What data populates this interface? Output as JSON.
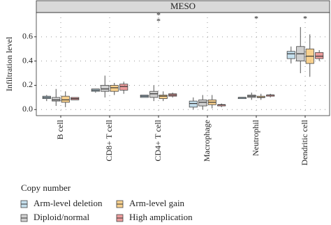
{
  "chart_data": {
    "type": "box",
    "title": "MESO",
    "y_label": "Infiltration level",
    "categories": [
      "B cell",
      "CD8+ T cell",
      "CD4+ T cell",
      "Macrophage",
      "Neutrophil",
      "Dendritic cell"
    ],
    "ylim": [
      -0.05,
      0.8
    ],
    "yticks": [
      {
        "value": 0,
        "label": "0.0"
      },
      0.2,
      0.4,
      0.6
    ],
    "grid": true,
    "legend_title": "Copy number",
    "series": [
      {
        "name": "Arm-level deletion",
        "color": "#9ecae1",
        "values": [
          {
            "min": 0.07,
            "q1": 0.09,
            "median": 0.1,
            "q3": 0.11,
            "max": 0.12
          },
          {
            "min": 0.14,
            "q1": 0.15,
            "median": 0.16,
            "q3": 0.17,
            "max": 0.17
          },
          {
            "min": 0.1,
            "q1": 0.1,
            "median": 0.11,
            "q3": 0.12,
            "max": 0.12
          },
          {
            "min": 0.0,
            "q1": 0.02,
            "median": 0.05,
            "q3": 0.07,
            "max": 0.1
          },
          {
            "min": 0.09,
            "q1": 0.09,
            "median": 0.1,
            "q3": 0.1,
            "max": 0.1
          },
          {
            "min": 0.38,
            "q1": 0.42,
            "median": 0.46,
            "q3": 0.48,
            "max": 0.52
          }
        ]
      },
      {
        "name": "Diploid/normal",
        "color": "#b0b0b0",
        "values": [
          {
            "min": 0.03,
            "q1": 0.07,
            "median": 0.08,
            "q3": 0.1,
            "max": 0.17
          },
          {
            "min": 0.1,
            "q1": 0.15,
            "median": 0.17,
            "q3": 0.2,
            "max": 0.28
          },
          {
            "min": 0.07,
            "q1": 0.1,
            "median": 0.13,
            "q3": 0.15,
            "max": 0.2
          },
          {
            "min": 0.0,
            "q1": 0.03,
            "median": 0.06,
            "q3": 0.08,
            "max": 0.12
          },
          {
            "min": 0.08,
            "q1": 0.1,
            "median": 0.11,
            "q3": 0.12,
            "max": 0.14
          },
          {
            "min": 0.3,
            "q1": 0.4,
            "median": 0.46,
            "q3": 0.52,
            "max": 0.68
          }
        ]
      },
      {
        "name": "Arm-level gain",
        "color": "#f5b342",
        "values": [
          {
            "min": 0.02,
            "q1": 0.06,
            "median": 0.08,
            "q3": 0.11,
            "max": 0.15
          },
          {
            "min": 0.12,
            "q1": 0.15,
            "median": 0.18,
            "q3": 0.2,
            "max": 0.22
          },
          {
            "min": 0.07,
            "q1": 0.09,
            "median": 0.11,
            "q3": 0.12,
            "max": 0.15
          },
          {
            "min": 0.01,
            "q1": 0.04,
            "median": 0.06,
            "q3": 0.08,
            "max": 0.12
          },
          {
            "min": 0.08,
            "q1": 0.1,
            "median": 0.1,
            "q3": 0.11,
            "max": 0.13
          },
          {
            "min": 0.27,
            "q1": 0.38,
            "median": 0.44,
            "q3": 0.5,
            "max": 0.62
          }
        ]
      },
      {
        "name": "High amplication",
        "color": "#e05a5a",
        "values": [
          {
            "min": 0.08,
            "q1": 0.08,
            "median": 0.09,
            "q3": 0.1,
            "max": 0.1
          },
          {
            "min": 0.13,
            "q1": 0.16,
            "median": 0.19,
            "q3": 0.21,
            "max": 0.23
          },
          {
            "min": 0.1,
            "q1": 0.11,
            "median": 0.12,
            "q3": 0.13,
            "max": 0.14
          },
          {
            "min": 0.02,
            "q1": 0.03,
            "median": 0.04,
            "q3": 0.04,
            "max": 0.05
          },
          {
            "min": 0.1,
            "q1": 0.11,
            "median": 0.12,
            "q3": 0.12,
            "max": 0.13
          },
          {
            "min": 0.4,
            "q1": 0.42,
            "median": 0.44,
            "q3": 0.47,
            "max": 0.49
          }
        ]
      }
    ],
    "annotations": [
      {
        "text": "*",
        "category": "CD4+ T cell",
        "y": 0.79
      },
      {
        "text": "*",
        "category": "CD4+ T cell",
        "y": 0.74
      },
      {
        "text": "*",
        "category": "Neutrophil",
        "y": 0.76
      },
      {
        "text": "*",
        "category": "Dendritic cell",
        "y": 0.76
      }
    ]
  }
}
